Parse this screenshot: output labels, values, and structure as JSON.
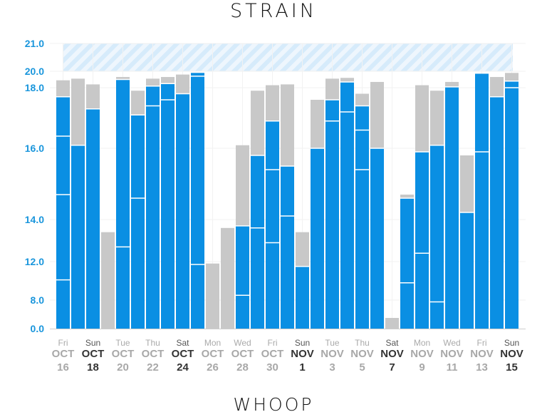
{
  "title": "STRAIN",
  "logo": "WHOOP",
  "colors": {
    "activity": "#0a8fe3",
    "day_strain": "#c8c8c8",
    "axis_label": "#1a96dc",
    "optimal_zone": "#d6ebfb"
  },
  "chart_data": {
    "type": "bar",
    "title": "STRAIN",
    "ylabel": "",
    "xlabel": "",
    "ylim": [
      0,
      21
    ],
    "y_ticks": [
      0,
      8,
      12,
      14,
      16,
      18,
      20,
      21
    ],
    "y_tick_labels": [
      "0.0",
      "8.0",
      "12.0",
      "14.0",
      "16.0",
      "18.0",
      "20.0",
      "21.0"
    ],
    "highlight_band": [
      20,
      21
    ],
    "grid": true,
    "series_note": "total = gray day strain; blue = activity strain, levels top-to-bottom with separators",
    "days": [
      {
        "date": "Oct 16",
        "total": 18.9,
        "blue": [
          17.7,
          16.4,
          14.7,
          10.1
        ]
      },
      {
        "date": "Oct 17",
        "total": 19.1,
        "blue": [
          16.1
        ]
      },
      {
        "date": "Oct 18",
        "total": 18.4,
        "blue": [
          17.3
        ]
      },
      {
        "date": "Oct 19",
        "total": 13.4,
        "blue": []
      },
      {
        "date": "Oct 20",
        "total": 19.3,
        "blue": [
          19.0,
          12.7
        ]
      },
      {
        "date": "Oct 21",
        "total": 17.9,
        "blue": [
          17.1,
          14.6
        ]
      },
      {
        "date": "Oct 22",
        "total": 19.1,
        "blue": [
          18.2,
          17.4
        ]
      },
      {
        "date": "Oct 23",
        "total": 19.3,
        "blue": [
          18.5,
          17.6
        ]
      },
      {
        "date": "Oct 24",
        "total": 19.6,
        "blue": [
          17.8
        ]
      },
      {
        "date": "Oct 25",
        "total": 19.8,
        "blue": [
          19.8,
          19.4,
          11.7
        ]
      },
      {
        "date": "Oct 26",
        "total": 11.8,
        "blue": []
      },
      {
        "date": "Oct 27",
        "total": 13.6,
        "blue": []
      },
      {
        "date": "Oct 28",
        "total": 16.1,
        "blue": [
          13.7,
          8.5
        ]
      },
      {
        "date": "Oct 29",
        "total": 17.9,
        "blue": [
          15.8,
          13.6
        ]
      },
      {
        "date": "Oct 30",
        "total": 18.3,
        "blue": [
          16.9,
          15.4,
          12.9
        ]
      },
      {
        "date": "Oct 31",
        "total": 18.4,
        "blue": [
          15.5,
          14.1
        ]
      },
      {
        "date": "Nov 1",
        "total": 13.4,
        "blue": [
          11.5
        ]
      },
      {
        "date": "Nov 2",
        "total": 17.6,
        "blue": [
          16.0
        ]
      },
      {
        "date": "Nov 3",
        "total": 19.1,
        "blue": [
          17.6,
          16.9
        ]
      },
      {
        "date": "Nov 4",
        "total": 19.2,
        "blue": [
          18.7,
          17.2
        ]
      },
      {
        "date": "Nov 5",
        "total": 17.8,
        "blue": [
          17.4,
          16.6,
          15.4
        ]
      },
      {
        "date": "Nov 6",
        "total": 18.7,
        "blue": [
          16.0
        ]
      },
      {
        "date": "Nov 7",
        "total": 3.0,
        "blue": []
      },
      {
        "date": "Nov 8",
        "total": 14.7,
        "blue": [
          14.6,
          9.8
        ]
      },
      {
        "date": "Nov 9",
        "total": 18.3,
        "blue": [
          15.9,
          12.4
        ]
      },
      {
        "date": "Nov 10",
        "total": 17.9,
        "blue": [
          16.1,
          7.5
        ]
      },
      {
        "date": "Nov 11",
        "total": 18.7,
        "blue": [
          18.1
        ]
      },
      {
        "date": "Nov 12",
        "total": 15.8,
        "blue": [
          14.2
        ]
      },
      {
        "date": "Nov 13",
        "total": 19.7,
        "blue": [
          19.7,
          15.9
        ]
      },
      {
        "date": "Nov 14",
        "total": 19.3,
        "blue": [
          17.7
        ]
      },
      {
        "date": "Nov 15",
        "total": 19.8,
        "blue": [
          18.8,
          18.0
        ]
      }
    ],
    "x_labels": [
      {
        "day": "Fri",
        "month": "OCT",
        "date": "16",
        "weekend": false
      },
      {
        "day": "Sun",
        "month": "OCT",
        "date": "18",
        "weekend": true
      },
      {
        "day": "Tue",
        "month": "OCT",
        "date": "20",
        "weekend": false
      },
      {
        "day": "Thu",
        "month": "OCT",
        "date": "22",
        "weekend": false
      },
      {
        "day": "Sat",
        "month": "OCT",
        "date": "24",
        "weekend": true
      },
      {
        "day": "Mon",
        "month": "OCT",
        "date": "26",
        "weekend": false
      },
      {
        "day": "Wed",
        "month": "OCT",
        "date": "28",
        "weekend": false
      },
      {
        "day": "Fri",
        "month": "OCT",
        "date": "30",
        "weekend": false
      },
      {
        "day": "Sun",
        "month": "NOV",
        "date": "1",
        "weekend": true
      },
      {
        "day": "Tue",
        "month": "NOV",
        "date": "3",
        "weekend": false
      },
      {
        "day": "Thu",
        "month": "NOV",
        "date": "5",
        "weekend": false
      },
      {
        "day": "Sat",
        "month": "NOV",
        "date": "7",
        "weekend": true
      },
      {
        "day": "Mon",
        "month": "NOV",
        "date": "9",
        "weekend": false
      },
      {
        "day": "Wed",
        "month": "NOV",
        "date": "11",
        "weekend": false
      },
      {
        "day": "Fri",
        "month": "NOV",
        "date": "13",
        "weekend": false
      },
      {
        "day": "Sun",
        "month": "NOV",
        "date": "15",
        "weekend": true
      }
    ]
  }
}
